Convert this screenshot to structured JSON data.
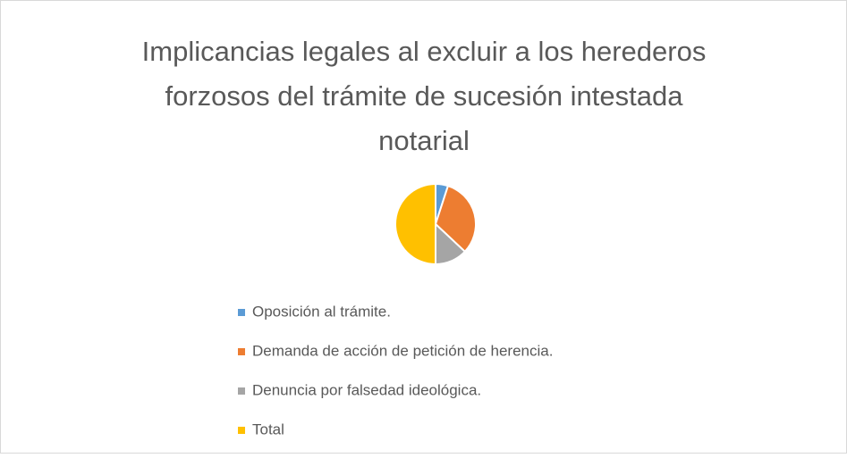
{
  "chart_data": {
    "type": "pie",
    "title_lines": [
      "Implicancias legales al excluir a los herederos",
      "forzosos del trámite de sucesión intestada",
      "notarial"
    ],
    "categories": [
      "Oposición al trámite.",
      "Demanda de acción de petición de herencia.",
      "Denuncia por falsedad ideológica.",
      "Total"
    ],
    "values": [
      5,
      32,
      13,
      50
    ],
    "colors": [
      "#5b9bd5",
      "#ed7d31",
      "#a5a5a5",
      "#ffc000"
    ]
  }
}
